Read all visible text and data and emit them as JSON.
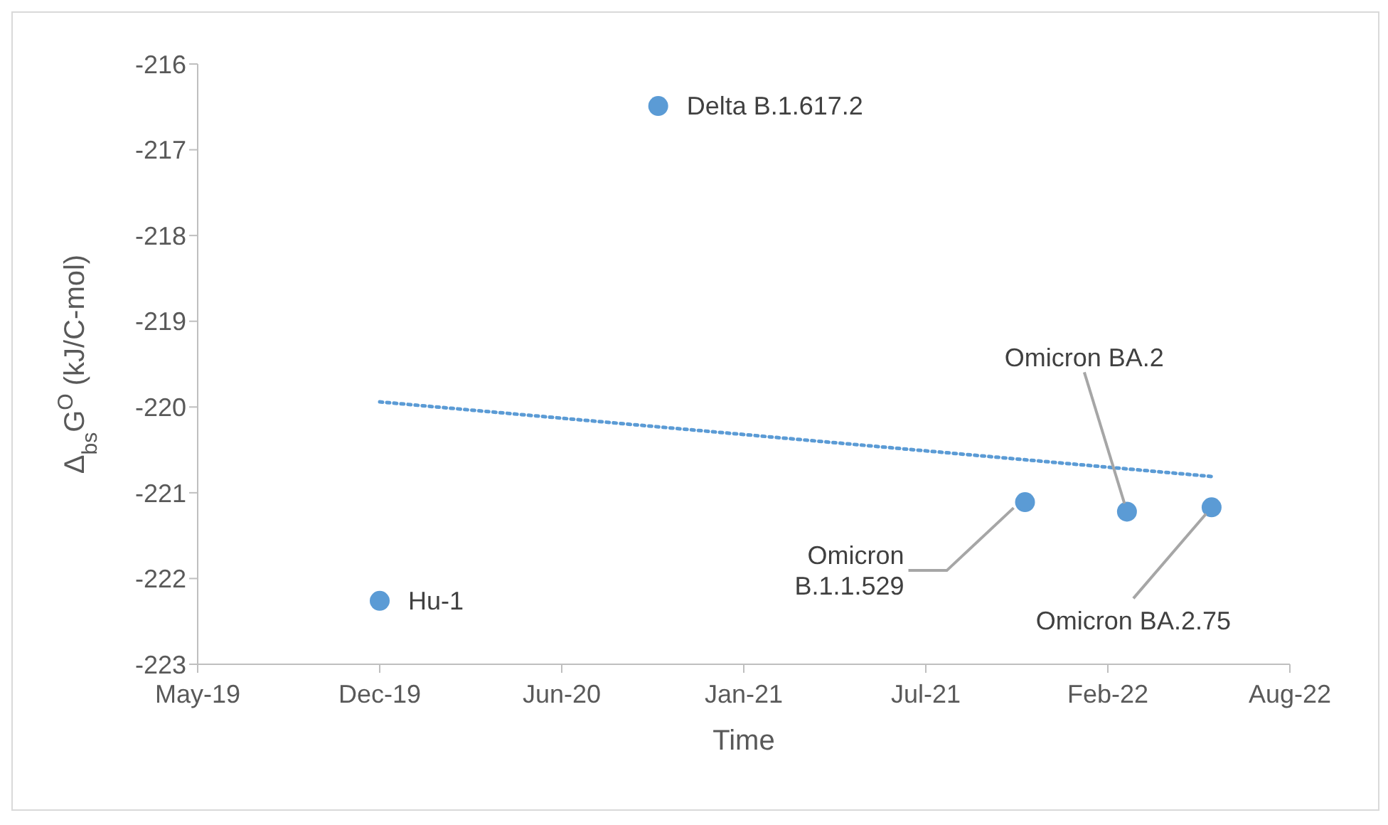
{
  "chart_data": {
    "type": "scatter",
    "xlabel": "Time",
    "ylabel": "Δ$_{bs}$G$^{O}$ (kJ/C-mol)",
    "x": [
      "2019-12-01",
      "2020-10-02",
      "2021-11-09",
      "2022-03-01",
      "2022-06-02"
    ],
    "series": [
      {
        "color": "#5b9bd5",
        "marker": "circle",
        "values": [
          -222.26,
          -216.49,
          -221.11,
          -221.22,
          -221.17
        ]
      },
      {
        "type": "line",
        "color": "#5b9bd5",
        "marker": "none",
        "line_style": "dotted",
        "x": [
          "2019-12-01",
          "2022-06-02"
        ],
        "values": [
          -219.94,
          -220.81
        ]
      }
    ],
    "annotations": [
      {
        "text": "Hu-1",
        "x": "2019-12-01",
        "y": -222.26
      },
      {
        "text": "Delta B.1.617.2",
        "x": "2020-10-02",
        "y": -216.49
      },
      {
        "text": "Omicron B.1.1.529",
        "x": "2021-11-09",
        "y": -221.11
      },
      {
        "text": "Omicron BA.2",
        "x": "2022-03-01",
        "y": -221.22
      },
      {
        "text": "Omicron BA.2.75",
        "x": "2022-06-02",
        "y": -221.17
      }
    ],
    "grid": false,
    "legend": false,
    "xlim": [
      "2019-05-15",
      "2022-08-27"
    ],
    "xticks": [
      {
        "value": "2019-05-15",
        "label": "May-19"
      },
      {
        "value": "2019-12-01",
        "label": "Dec-19"
      },
      {
        "value": "2020-06-18",
        "label": "Jun-20"
      },
      {
        "value": "2021-01-04",
        "label": "Jan-21"
      },
      {
        "value": "2021-07-23",
        "label": "Jul-21"
      },
      {
        "value": "2022-02-08",
        "label": "Feb-22"
      },
      {
        "value": "2022-08-27",
        "label": "Aug-22"
      }
    ],
    "ylim": [
      -223,
      -216
    ],
    "yticks": [
      -223,
      -222,
      -221,
      -220,
      -219,
      -218,
      -217,
      -216
    ]
  }
}
